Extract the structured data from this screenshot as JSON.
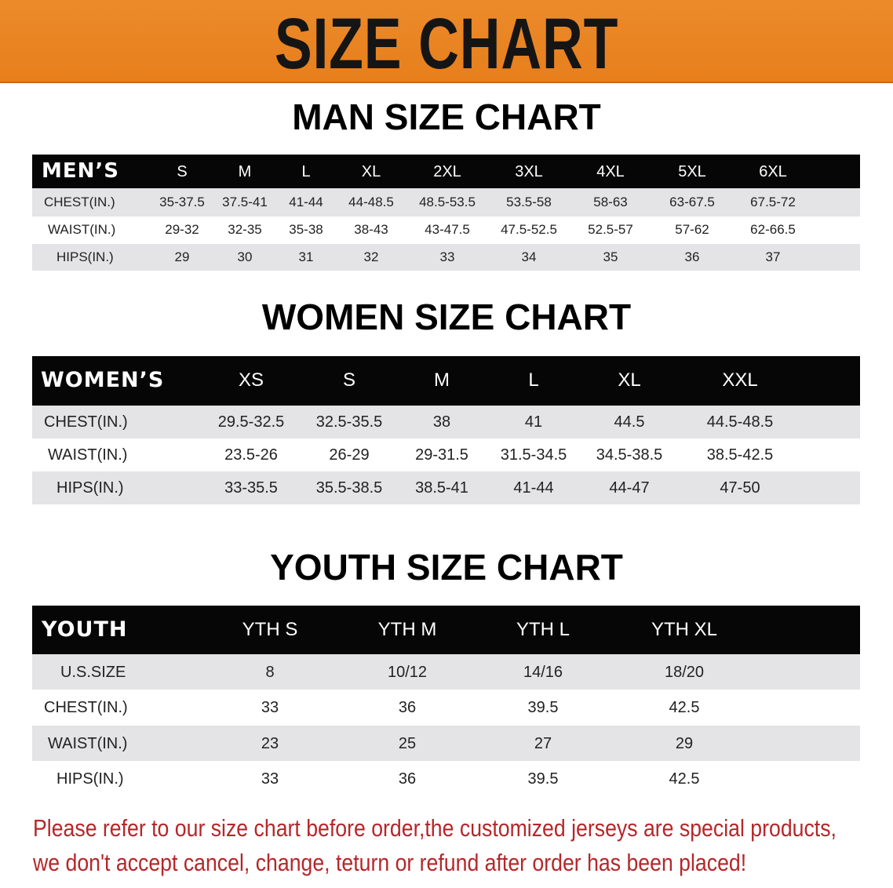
{
  "banner_title": "SIZE CHART",
  "men": {
    "title": "MAN SIZE CHART",
    "header": "MEN’S",
    "sizes": [
      "S",
      "M",
      "L",
      "XL",
      "2XL",
      "3XL",
      "4XL",
      "5XL",
      "6XL"
    ],
    "rows": [
      {
        "label": "CHEST(IN.)",
        "values": [
          "35-37.5",
          "37.5-41",
          "41-44",
          "44-48.5",
          "48.5-53.5",
          "53.5-58",
          "58-63",
          "63-67.5",
          "67.5-72"
        ]
      },
      {
        "label": "WAIST(IN.)",
        "values": [
          "29-32",
          "32-35",
          "35-38",
          "38-43",
          "43-47.5",
          "47.5-52.5",
          "52.5-57",
          "57-62",
          "62-66.5"
        ]
      },
      {
        "label": "HIPS(IN.)",
        "values": [
          "29",
          "30",
          "31",
          "32",
          "33",
          "34",
          "35",
          "36",
          "37"
        ]
      }
    ]
  },
  "women": {
    "title": "WOMEN SIZE CHART",
    "header": "WOMEN’S",
    "sizes": [
      "XS",
      "S",
      "M",
      "L",
      "XL",
      "XXL"
    ],
    "rows": [
      {
        "label": "CHEST(IN.)",
        "values": [
          "29.5-32.5",
          "32.5-35.5",
          "38",
          "41",
          "44.5",
          "44.5-48.5"
        ]
      },
      {
        "label": "WAIST(IN.)",
        "values": [
          "23.5-26",
          "26-29",
          "29-31.5",
          "31.5-34.5",
          "34.5-38.5",
          "38.5-42.5"
        ]
      },
      {
        "label": "HIPS(IN.)",
        "values": [
          "33-35.5",
          "35.5-38.5",
          "38.5-41",
          "41-44",
          "44-47",
          "47-50"
        ]
      }
    ]
  },
  "youth": {
    "title": "YOUTH SIZE CHART",
    "header": "YOUTH",
    "sizes": [
      "YTH S",
      "YTH M",
      "YTH L",
      "YTH XL"
    ],
    "rows": [
      {
        "label": "U.S.SIZE",
        "values": [
          "8",
          "10/12",
          "14/16",
          "18/20"
        ]
      },
      {
        "label": "CHEST(IN.)",
        "values": [
          "33",
          "36",
          "39.5",
          "42.5"
        ]
      },
      {
        "label": "WAIST(IN.)",
        "values": [
          "23",
          "25",
          "27",
          "29"
        ]
      },
      {
        "label": "HIPS(IN.)",
        "values": [
          "33",
          "36",
          "39.5",
          "42.5"
        ]
      }
    ]
  },
  "notice": {
    "line1": "Please refer to our size chart before order,the customized jerseys are special products,",
    "line2": "we don't accept cancel, change, teturn or refund after order has been placed!",
    "color": "#b5272a"
  },
  "colors": {
    "banner": "#e98420",
    "header": "#060606",
    "stripe": "#e4e4e6"
  }
}
